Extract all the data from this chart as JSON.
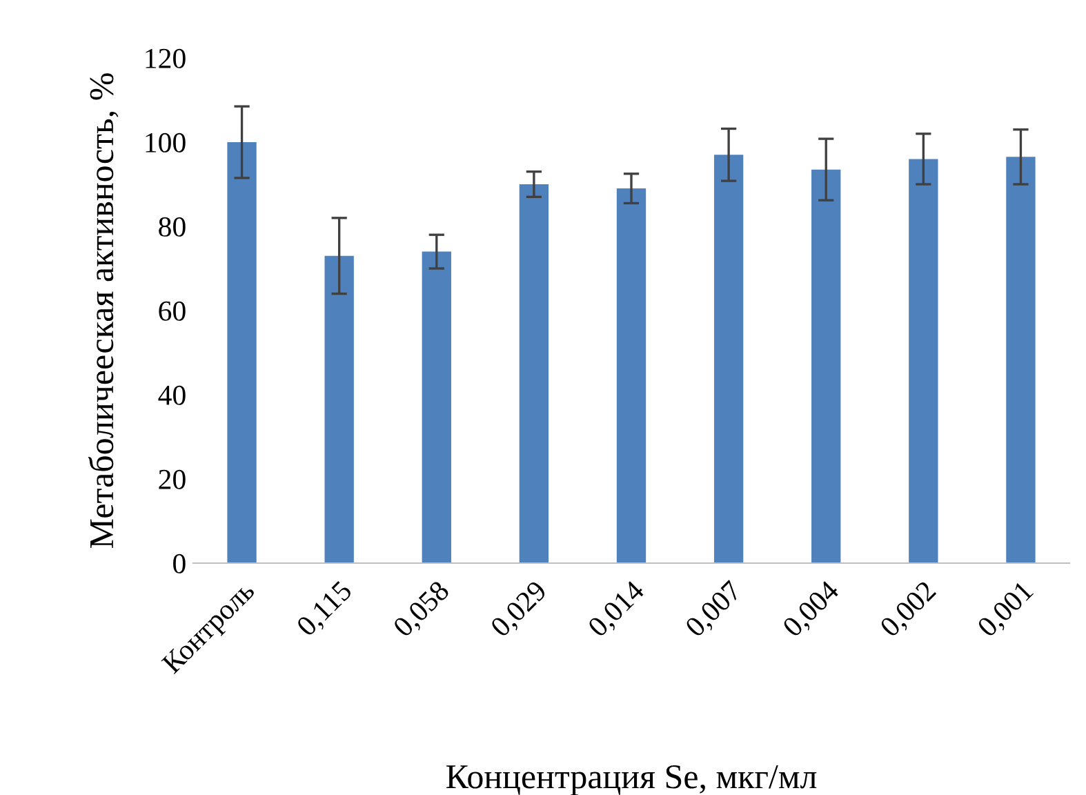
{
  "chart_data": {
    "type": "bar",
    "categories": [
      "Контроль",
      "0,115",
      "0,058",
      "0,029",
      "0,014",
      "0,007",
      "0,004",
      "0,002",
      "0,001"
    ],
    "values": [
      100,
      73,
      74,
      90,
      89,
      97,
      93.5,
      96,
      96.5
    ],
    "errors": [
      8.5,
      9,
      4,
      3,
      3.5,
      6.2,
      7.3,
      6,
      6.5
    ],
    "color": "#4f81bd",
    "xlabel": "Концентрация Se, мкг/мл",
    "ylabel": "Метаболичееская активность, %",
    "ylim": [
      0,
      120
    ],
    "yticks": [
      0,
      20,
      40,
      60,
      80,
      100,
      120
    ],
    "grid": false,
    "legend": false
  }
}
